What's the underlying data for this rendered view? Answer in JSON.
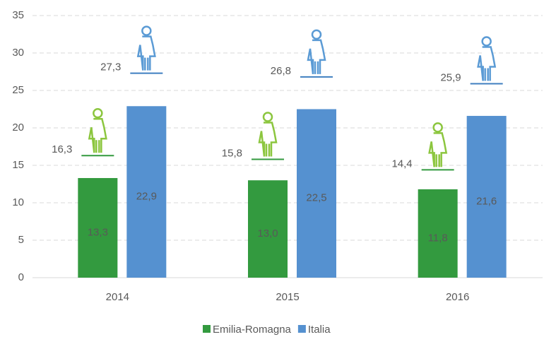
{
  "chart_data": {
    "type": "bar",
    "categories": [
      "2014",
      "2015",
      "2016"
    ],
    "series": [
      {
        "name": "Emilia-Romagna",
        "color": "#339a3f",
        "values": [
          13.3,
          13.0,
          11.8
        ],
        "value_labels": [
          "13,3",
          "13,0",
          "11,8"
        ],
        "marker_color": "#8cc63f",
        "marker_values": [
          16.3,
          15.8,
          14.4
        ],
        "marker_labels": [
          "16,3",
          "15,8",
          "14,4"
        ]
      },
      {
        "name": "Italia",
        "color": "#5591d0",
        "values": [
          22.9,
          22.5,
          21.6
        ],
        "value_labels": [
          "22,9",
          "22,5",
          "21,6"
        ],
        "marker_color": "#5b9bd5",
        "marker_values": [
          27.3,
          26.8,
          25.9
        ],
        "marker_labels": [
          "27,3",
          "26,8",
          "25,9"
        ]
      }
    ],
    "ylim": [
      0,
      35
    ],
    "yticks": [
      0,
      5,
      10,
      15,
      20,
      25,
      30,
      35
    ],
    "grid": true,
    "legend": "bottom"
  }
}
